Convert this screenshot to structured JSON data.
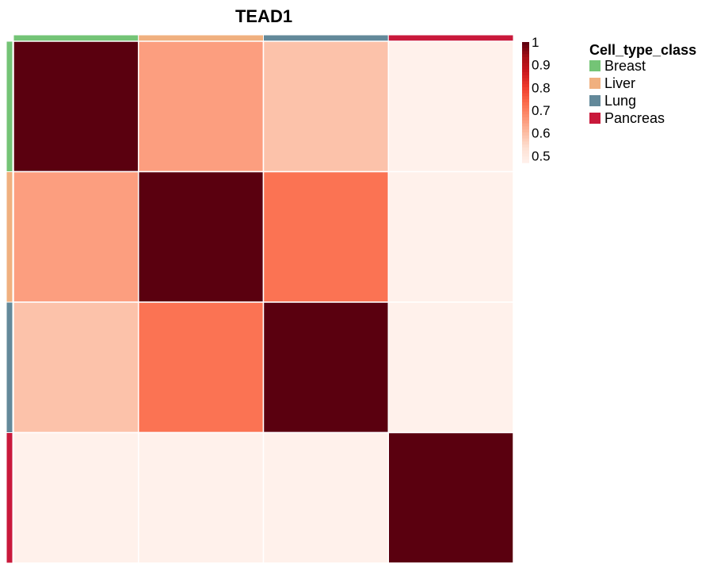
{
  "chart_data": {
    "type": "heatmap",
    "title": "TEAD1",
    "categories": [
      "Breast",
      "Liver",
      "Lung",
      "Pancreas"
    ],
    "annotation": {
      "name": "Cell_type_class",
      "classes": [
        {
          "label": "Breast",
          "color": "#74c476"
        },
        {
          "label": "Liver",
          "color": "#f0b07f"
        },
        {
          "label": "Lung",
          "color": "#63899a"
        },
        {
          "label": "Pancreas",
          "color": "#c9193b"
        }
      ]
    },
    "values": [
      [
        1.0,
        0.65,
        0.59,
        0.47
      ],
      [
        0.65,
        1.0,
        0.72,
        0.47
      ],
      [
        0.59,
        0.72,
        1.0,
        0.47
      ],
      [
        0.47,
        0.47,
        0.47,
        1.0
      ]
    ],
    "colorbar": {
      "ticks": [
        "1",
        "0.9",
        "0.8",
        "0.7",
        "0.6",
        "0.5"
      ],
      "range": [
        0.47,
        1.0
      ],
      "colors": [
        "#fff1eb",
        "#fde0d2",
        "#fcbba1",
        "#fc9272",
        "#fb6a4a",
        "#ef3b2c",
        "#cb181d",
        "#a50f15",
        "#5a000f"
      ]
    },
    "legend_position": "right"
  }
}
